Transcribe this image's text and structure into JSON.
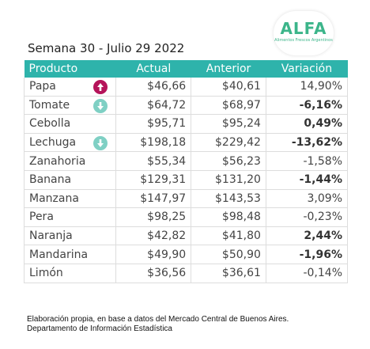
{
  "logo": {
    "name": "ALFA",
    "tagline": "Alimentos Frescos Argentinos"
  },
  "title": "Semana 30 - Julio 29 2022",
  "table": {
    "columns": [
      "Producto",
      "Actual",
      "Anterior",
      "Variación"
    ],
    "rows": [
      [
        "Papa",
        "$46,66",
        "$40,61",
        "14,90%"
      ],
      [
        "Tomate",
        "$64,72",
        "$68,97",
        "-6,16%"
      ],
      [
        "Cebolla",
        "$95,71",
        "$95,24",
        "0,49%"
      ],
      [
        "Lechuga",
        "$198,18",
        "$229,42",
        "-13,62%"
      ],
      [
        "Zanahoria",
        "$55,34",
        "$56,23",
        "-1,58%"
      ],
      [
        "Banana",
        "$129,31",
        "$131,20",
        "-1,44%"
      ],
      [
        "Manzana",
        "$147,97",
        "$143,53",
        "3,09%"
      ],
      [
        "Pera",
        "$98,25",
        "$98,48",
        "-0,23%"
      ],
      [
        "Naranja",
        "$42,82",
        "$41,80",
        "2,44%"
      ],
      [
        "Mandarina",
        "$49,90",
        "$50,90",
        "-1,96%"
      ],
      [
        "Limón",
        "$36,56",
        "$36,61",
        "-0,14%"
      ]
    ]
  },
  "footer": [
    "Elaboración propia, en base a datos del Mercado Central de Buenos Aires.",
    "Departamento de Información Estadística"
  ]
}
